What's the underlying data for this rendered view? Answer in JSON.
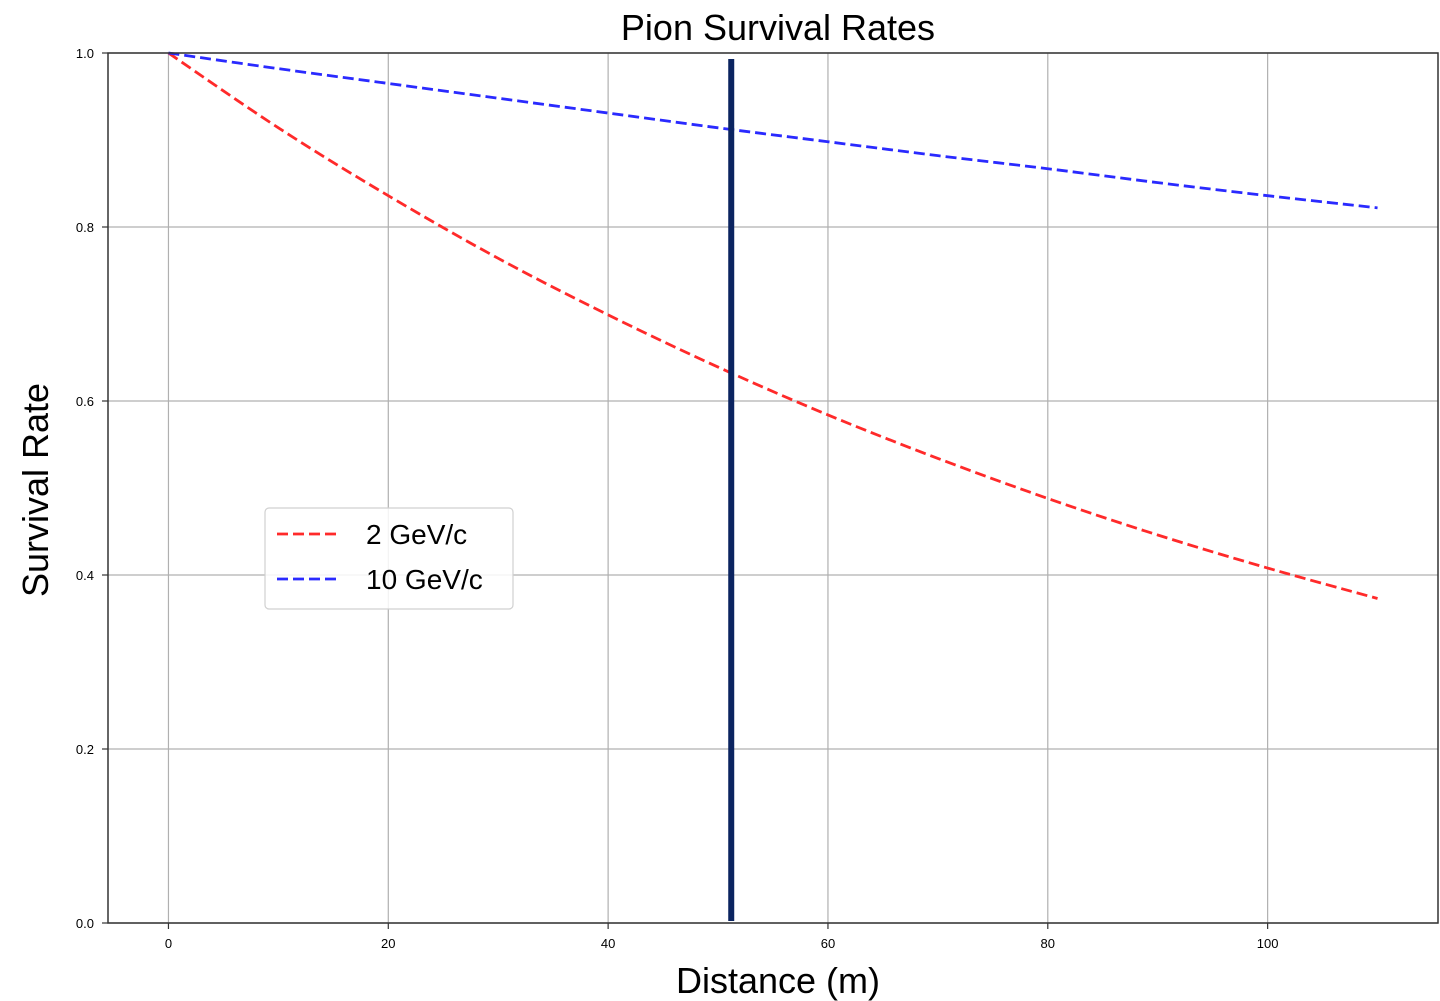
{
  "chart_data": {
    "type": "line",
    "title": "Pion Survival Rates",
    "xlabel": "Distance (m)",
    "ylabel": "Survival Rate",
    "xlim": [
      -5.5,
      115.5
    ],
    "ylim": [
      0.0,
      1.0
    ],
    "x_ticks": [
      0,
      20,
      40,
      60,
      80,
      100
    ],
    "y_ticks": [
      0.0,
      0.2,
      0.4,
      0.6,
      0.8,
      1.0
    ],
    "x_tick_labels": [
      "0",
      "20",
      "40",
      "60",
      "80",
      "100"
    ],
    "y_tick_labels": [
      "0.0",
      "0.2",
      "0.4",
      "0.6",
      "0.8",
      "1.0"
    ],
    "grid": true,
    "legend_position": "center-left",
    "series": [
      {
        "name": "2 GeV/c",
        "color": "#ff2a2a",
        "linestyle": "dashed",
        "x": [
          0,
          10,
          20,
          30,
          40,
          50,
          60,
          70,
          80,
          90,
          100,
          110
        ],
        "y": [
          1.0,
          0.914,
          0.836,
          0.764,
          0.699,
          0.639,
          0.584,
          0.534,
          0.488,
          0.446,
          0.408,
          0.373
        ]
      },
      {
        "name": "10 GeV/c",
        "color": "#2a2aff",
        "linestyle": "dashed",
        "x": [
          0,
          10,
          20,
          30,
          40,
          50,
          60,
          70,
          80,
          90,
          100,
          110
        ],
        "y": [
          1.0,
          0.982,
          0.965,
          0.948,
          0.931,
          0.914,
          0.898,
          0.882,
          0.867,
          0.851,
          0.836,
          0.822
        ]
      }
    ],
    "vertical_line": {
      "x": 51.2,
      "color": "#0b2460"
    }
  }
}
